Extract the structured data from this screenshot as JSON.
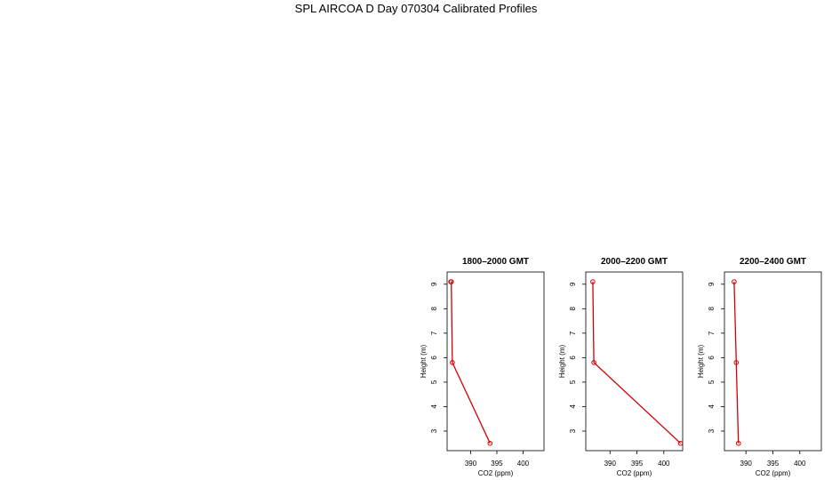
{
  "title": "SPL AIRCOA D  Day 070304  Calibrated Profiles",
  "colors": {
    "series": "#d40000",
    "axis": "#000000"
  },
  "chart_data": [
    {
      "type": "line",
      "title": "1800–2000 GMT",
      "xlabel": "CO2 (ppm)",
      "ylabel": "Height (m)",
      "xlim": [
        385.5,
        404
      ],
      "ylim": [
        2.2,
        9.5
      ],
      "xticks": [
        390,
        395,
        400
      ],
      "yticks": [
        3,
        4,
        5,
        6,
        7,
        8,
        9
      ],
      "grid": false,
      "series": [
        {
          "x": [
            386.2,
            386.3,
            386.5,
            393.7
          ],
          "y": [
            9.1,
            9.1,
            5.8,
            2.5
          ]
        }
      ]
    },
    {
      "type": "line",
      "title": "2000–2200 GMT",
      "xlabel": "CO2 (ppm)",
      "ylabel": "Height (m)",
      "xlim": [
        385.5,
        403.5
      ],
      "ylim": [
        2.2,
        9.5
      ],
      "xticks": [
        390,
        395,
        400
      ],
      "yticks": [
        3,
        4,
        5,
        6,
        7,
        8,
        9
      ],
      "grid": false,
      "series": [
        {
          "x": [
            386.8,
            387.0,
            403.1
          ],
          "y": [
            9.1,
            5.8,
            2.5
          ]
        }
      ]
    },
    {
      "type": "line",
      "title": "2200–2400 GMT",
      "xlabel": "CO2 (ppm)",
      "ylabel": "Height (m)",
      "xlim": [
        386,
        404
      ],
      "ylim": [
        2.2,
        9.5
      ],
      "xticks": [
        390,
        395,
        400
      ],
      "yticks": [
        3,
        4,
        5,
        6,
        7,
        8,
        9
      ],
      "grid": false,
      "series": [
        {
          "x": [
            387.8,
            388.2,
            388.6
          ],
          "y": [
            9.1,
            5.8,
            2.5
          ]
        }
      ]
    }
  ]
}
